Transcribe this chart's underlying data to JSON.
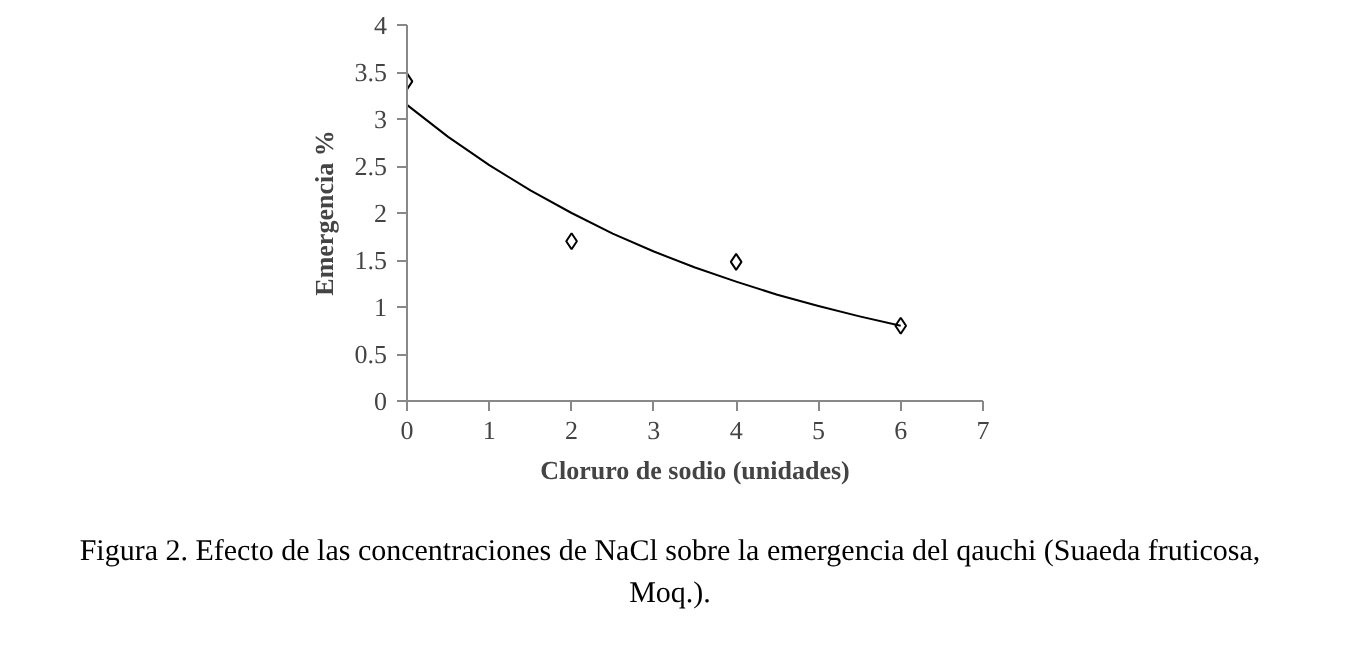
{
  "chart_data": {
    "type": "scatter",
    "xlabel": "Cloruro de sodio (unidades)",
    "ylabel": "Emergencia %",
    "xlim": [
      0,
      7
    ],
    "xticks": [
      0,
      1,
      2,
      3,
      4,
      5,
      6,
      7
    ],
    "ylim": [
      0,
      4
    ],
    "yticks": [
      0,
      0.5,
      1,
      1.5,
      2,
      2.5,
      3,
      3.5,
      4
    ],
    "grid": false,
    "series": [
      {
        "marker": "diamond",
        "color": "#000000",
        "x": [
          0,
          2,
          4,
          6
        ],
        "values": [
          3.4,
          1.7,
          1.48,
          0.8
        ]
      },
      {
        "type": "line",
        "marker": "none",
        "line_style": "solid",
        "color": "#000000",
        "x": [
          0,
          0.5,
          1,
          1.5,
          2,
          2.5,
          3,
          3.5,
          4,
          4.5,
          5,
          5.5,
          6
        ],
        "values": [
          3.15,
          2.81,
          2.51,
          2.24,
          2.0,
          1.78,
          1.59,
          1.42,
          1.27,
          1.13,
          1.01,
          0.9,
          0.8
        ]
      }
    ],
    "annotations": [
      "Figura 2. Efecto de las concentraciones de NaCl sobre la emergencia del qauchi (Suaeda fruticosa, Moq.)."
    ]
  }
}
